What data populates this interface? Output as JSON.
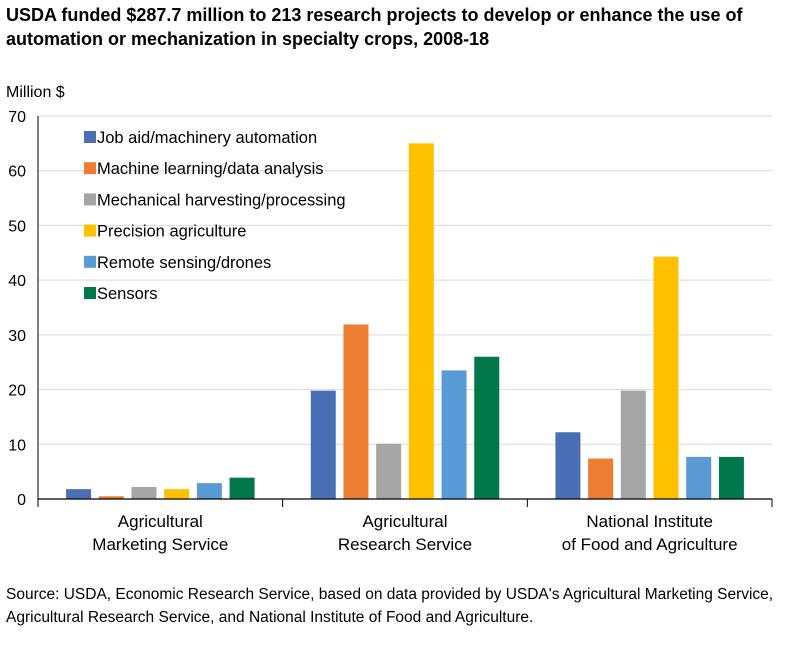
{
  "chart_data": {
    "type": "bar",
    "title": "USDA funded $287.7 million to 213 research projects to develop or enhance the use of automation or mechanization in specialty crops, 2008-18",
    "ylabel": "Million $",
    "xlabel": "",
    "ylim": [
      0,
      70
    ],
    "yticks": [
      0,
      10,
      20,
      30,
      40,
      50,
      60,
      70
    ],
    "grid": true,
    "legend_position": "top-left",
    "categories": [
      [
        "Agricultural",
        "Marketing Service"
      ],
      [
        "Agricultural",
        "Research Service"
      ],
      [
        "National Institute",
        "of Food and Agriculture"
      ]
    ],
    "series": [
      {
        "name": "Job aid/machinery automation",
        "color": "#4A6FB5",
        "values": [
          1.8,
          19.8,
          12.2
        ]
      },
      {
        "name": "Machine learning/data analysis",
        "color": "#ED7D31",
        "values": [
          0.5,
          31.9,
          7.4
        ]
      },
      {
        "name": "Mechanical harvesting/processing",
        "color": "#A5A5A5",
        "values": [
          2.2,
          10.1,
          19.8
        ]
      },
      {
        "name": "Precision agriculture",
        "color": "#FFC000",
        "values": [
          1.8,
          65.0,
          44.3
        ]
      },
      {
        "name": "Remote sensing/drones",
        "color": "#5B9BD5",
        "values": [
          2.9,
          23.5,
          7.7
        ]
      },
      {
        "name": "Sensors",
        "color": "#00784A",
        "values": [
          3.9,
          26.0,
          7.7
        ]
      }
    ]
  },
  "source": "Source: USDA, Economic Research Service, based on data provided by USDA's Agricultural Marketing Service, Agricultural Research Service, and National Institute of Food and Agriculture."
}
